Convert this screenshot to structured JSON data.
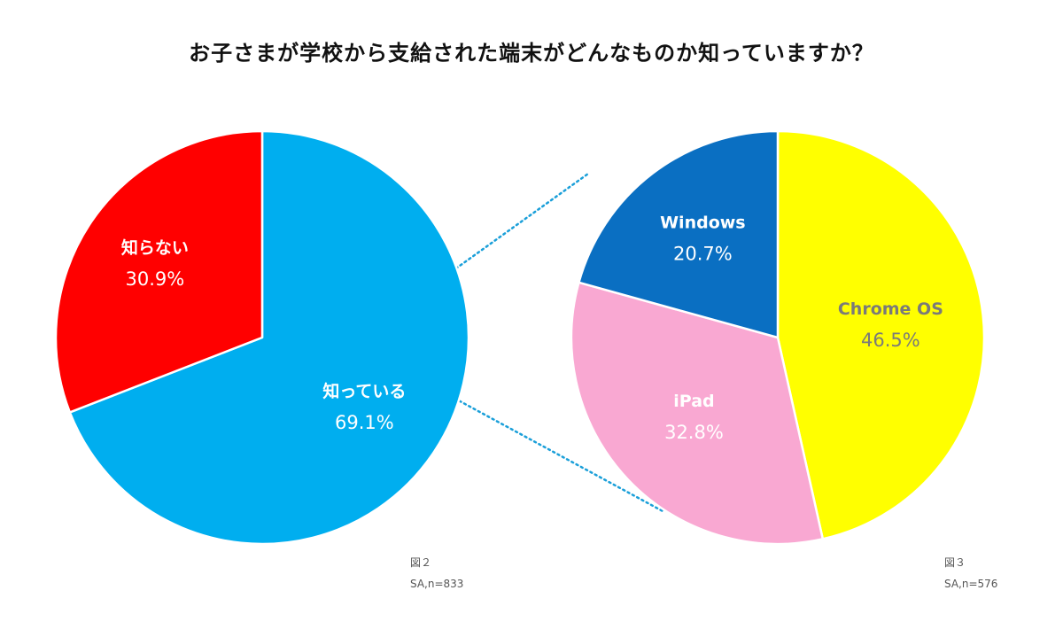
{
  "title": "お子さまが学校から支給された端末がどんなものか知っていますか？",
  "chart_data": [
    {
      "type": "pie",
      "figure_label": "図２",
      "sample_note": "SA,n=833",
      "slices": [
        {
          "label": "知っている",
          "value_text": "69.1%",
          "value": 69.1,
          "color": "#00aeef",
          "text_color": "#ffffff"
        },
        {
          "label": "知らない",
          "value_text": "30.9%",
          "value": 30.9,
          "color": "#ff0000",
          "text_color": "#ffffff"
        }
      ]
    },
    {
      "type": "pie",
      "figure_label": "図３",
      "sample_note": "SA,n=576",
      "slices": [
        {
          "label": "Chrome OS",
          "value_text": "46.5%",
          "value": 46.5,
          "color": "#ffff00",
          "text_color": "#7a7a7a"
        },
        {
          "label": "iPad",
          "value_text": "32.8%",
          "value": 32.8,
          "color": "#f9a8d2",
          "text_color": "#ffffff"
        },
        {
          "label": "Windows",
          "value_text": "20.7%",
          "value": 20.7,
          "color": "#0a6fc2",
          "text_color": "#ffffff"
        }
      ]
    }
  ],
  "connector_color": "#1a9fd9"
}
